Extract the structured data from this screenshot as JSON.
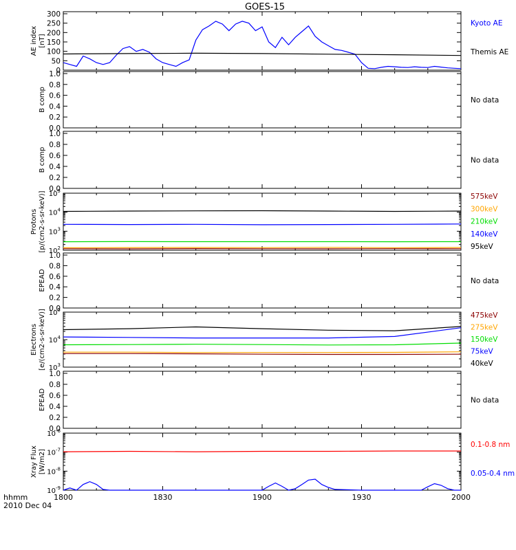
{
  "title": "GOES-15",
  "footer": {
    "time_label": "hhmm",
    "date_label": "2010 Dec 04"
  },
  "x_axis": {
    "ticks": [
      "1800",
      "1830",
      "1900",
      "1930",
      "2000"
    ]
  },
  "colors": {
    "black": "#000000",
    "blue": "#0000ff",
    "green": "#00dd00",
    "orange": "#ffa500",
    "darkred": "#8b0000",
    "red": "#ff0000"
  },
  "chart_data": [
    {
      "type": "line",
      "panel": "ae",
      "ylabel": "AE index [nT]",
      "ylim": [
        0,
        300
      ],
      "ytick_labels": [
        "0",
        "50",
        "100",
        "150",
        "200",
        "250",
        "300"
      ],
      "x_units": "hhmm",
      "xlim": [
        "18:00",
        "20:00"
      ],
      "series": [
        {
          "name": "Kyoto AE",
          "color": "#0000ff",
          "x": [
            "18:00",
            "18:02",
            "18:04",
            "18:06",
            "18:08",
            "18:10",
            "18:12",
            "18:14",
            "18:16",
            "18:18",
            "18:20",
            "18:22",
            "18:24",
            "18:26",
            "18:28",
            "18:30",
            "18:32",
            "18:34",
            "18:36",
            "18:38",
            "18:40",
            "18:42",
            "18:44",
            "18:46",
            "18:48",
            "18:50",
            "18:52",
            "18:54",
            "18:56",
            "18:58",
            "19:00",
            "19:02",
            "19:04",
            "19:06",
            "19:08",
            "19:10",
            "19:12",
            "19:14",
            "19:16",
            "19:18",
            "19:20",
            "19:22",
            "19:24",
            "19:26",
            "19:28",
            "19:30",
            "19:32",
            "19:34",
            "19:36",
            "19:38",
            "19:40",
            "19:42",
            "19:44",
            "19:46",
            "19:48",
            "19:50",
            "19:52",
            "19:54",
            "19:56",
            "19:58",
            "20:00"
          ],
          "values": [
            40,
            30,
            20,
            75,
            60,
            40,
            30,
            40,
            80,
            115,
            125,
            100,
            110,
            95,
            60,
            40,
            30,
            20,
            40,
            55,
            160,
            215,
            235,
            260,
            245,
            210,
            245,
            260,
            250,
            210,
            230,
            150,
            120,
            175,
            135,
            175,
            205,
            235,
            180,
            150,
            130,
            110,
            105,
            95,
            85,
            40,
            10,
            8,
            15,
            20,
            18,
            15,
            14,
            18,
            15,
            14,
            20,
            16,
            12,
            10,
            8
          ]
        },
        {
          "name": "Themis AE",
          "color": "#000000",
          "x": [
            "18:00",
            "18:20",
            "18:40",
            "19:00",
            "19:20",
            "19:40",
            "20:00"
          ],
          "values": [
            86,
            88,
            90,
            88,
            85,
            82,
            78
          ]
        }
      ]
    },
    {
      "type": "line",
      "panel": "b1",
      "ylabel": "B comp",
      "ylim": [
        0,
        1
      ],
      "ytick_labels": [
        "0.0",
        "0.2",
        "0.4",
        "0.6",
        "0.8",
        "1.0"
      ],
      "status": "No data",
      "series": []
    },
    {
      "type": "line",
      "panel": "b2",
      "ylabel": "B comp",
      "ylim": [
        0,
        1
      ],
      "ytick_labels": [
        "0.0",
        "0.2",
        "0.4",
        "0.6",
        "0.8",
        "1.0"
      ],
      "status": "No data",
      "series": []
    },
    {
      "type": "line",
      "panel": "protons",
      "ylabel": "Protons [p/(cm2-s-sr-keV)]",
      "yscale": "log",
      "ylim": [
        100,
        100000
      ],
      "series": [
        {
          "name": "575keV",
          "color": "#8b0000",
          "values": [
            120,
            118,
            122,
            120,
            119,
            121,
            120
          ]
        },
        {
          "name": "300keV",
          "color": "#ffa500",
          "values": [
            135,
            138,
            140,
            137,
            142,
            136,
            140
          ]
        },
        {
          "name": "210keV",
          "color": "#00dd00",
          "values": [
            280,
            285,
            283,
            282,
            284,
            281,
            283
          ]
        },
        {
          "name": "140keV",
          "color": "#0000ff",
          "values": [
            2300,
            2250,
            2300,
            2200,
            2250,
            2300,
            2400
          ]
        },
        {
          "name": "95keV",
          "color": "#000000",
          "values": [
            11000,
            11500,
            11800,
            12000,
            11500,
            11000,
            11500
          ]
        }
      ],
      "x": [
        "18:00",
        "18:20",
        "18:40",
        "19:00",
        "19:20",
        "19:40",
        "20:00"
      ]
    },
    {
      "type": "line",
      "panel": "epead1",
      "ylabel": "EPEAD",
      "ylim": [
        0,
        1
      ],
      "ytick_labels": [
        "0.0",
        "0.2",
        "0.4",
        "0.6",
        "0.8",
        "1.0"
      ],
      "status": "No data",
      "series": []
    },
    {
      "type": "line",
      "panel": "electrons",
      "ylabel": "Electrons [e/(cm2-s-sr-keV)]",
      "yscale": "log",
      "ylim": [
        1000,
        100000
      ],
      "series": [
        {
          "name": "475keV",
          "color": "#8b0000",
          "values": [
            3100,
            3100,
            3050,
            2950,
            2900,
            2900,
            2950
          ]
        },
        {
          "name": "275keV",
          "color": "#ffa500",
          "values": [
            3500,
            3500,
            3400,
            3400,
            3400,
            3450,
            3600
          ]
        },
        {
          "name": "150keV",
          "color": "#00dd00",
          "values": [
            6500,
            6600,
            6800,
            6600,
            6400,
            6500,
            7500
          ]
        },
        {
          "name": "75keV",
          "color": "#0000ff",
          "values": [
            12500,
            12000,
            11500,
            11500,
            11500,
            13000,
            27000
          ]
        },
        {
          "name": "40keV",
          "color": "#000000",
          "values": [
            23000,
            25000,
            29000,
            25000,
            22000,
            21000,
            30000
          ]
        }
      ],
      "x": [
        "18:00",
        "18:20",
        "18:40",
        "19:00",
        "19:20",
        "19:40",
        "20:00"
      ]
    },
    {
      "type": "line",
      "panel": "epead2",
      "ylabel": "EPEAD",
      "ylim": [
        0,
        1
      ],
      "ytick_labels": [
        "0.0",
        "0.2",
        "0.4",
        "0.6",
        "0.8",
        "1.0"
      ],
      "status": "No data",
      "series": []
    },
    {
      "type": "line",
      "panel": "xray",
      "ylabel": "Xray Flux [W/m2]",
      "yscale": "log",
      "ylim": [
        1e-09,
        1e-06
      ],
      "series": [
        {
          "name": "0.1-0.8 nm",
          "color": "#ff0000",
          "x": [
            "18:00",
            "18:20",
            "18:40",
            "19:00",
            "19:20",
            "19:40",
            "20:00"
          ],
          "values": [
            1.05e-07,
            1.1e-07,
            1.05e-07,
            1.1e-07,
            1.1e-07,
            1.15e-07,
            1.15e-07
          ]
        },
        {
          "name": "0.05-0.4 nm",
          "color": "#0000ff",
          "x": [
            "18:00",
            "18:02",
            "18:04",
            "18:06",
            "18:08",
            "18:10",
            "18:12",
            "18:14",
            "18:40",
            "19:00",
            "19:02",
            "19:04",
            "19:06",
            "19:08",
            "19:10",
            "19:12",
            "19:14",
            "19:16",
            "19:18",
            "19:20",
            "19:22",
            "19:30",
            "19:48",
            "19:50",
            "19:52",
            "19:54",
            "19:56",
            "19:58",
            "20:00"
          ],
          "values": [
            1e-09,
            1.3e-09,
            1e-09,
            2e-09,
            2.8e-09,
            2e-09,
            1.1e-09,
            1e-09,
            1e-09,
            1e-09,
            1.6e-09,
            2.4e-09,
            1.6e-09,
            1e-09,
            1.2e-09,
            2e-09,
            3.4e-09,
            3.8e-09,
            2e-09,
            1.4e-09,
            1.1e-09,
            1e-09,
            1e-09,
            1.5e-09,
            2.2e-09,
            1.8e-09,
            1.2e-09,
            1e-09,
            1e-09
          ]
        }
      ]
    }
  ]
}
